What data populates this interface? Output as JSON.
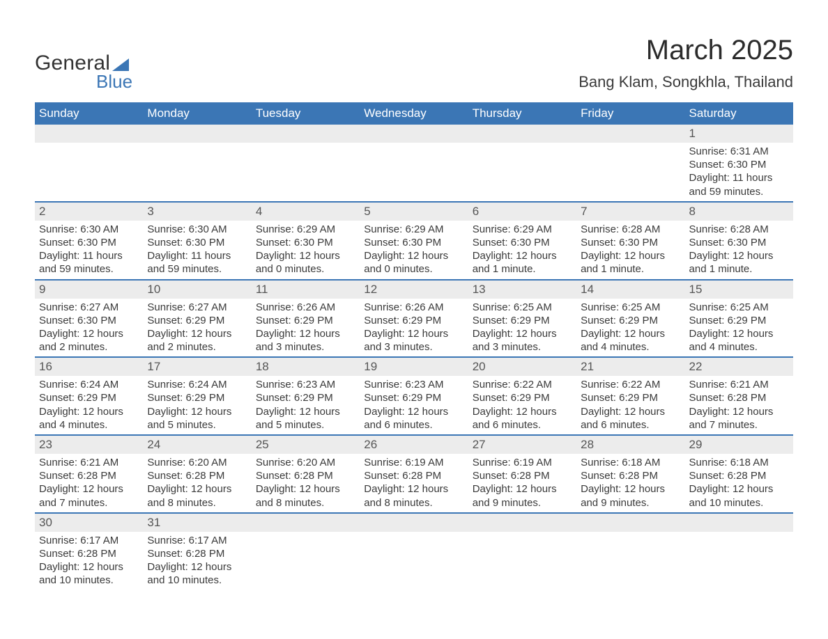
{
  "logo": {
    "word1": "General",
    "word2": "Blue",
    "shape_color": "#3b76b5"
  },
  "title": "March 2025",
  "subtitle": "Bang Klam, Songkhla, Thailand",
  "colors": {
    "header_bg": "#3b76b5",
    "header_text": "#ffffff",
    "daynum_bg": "#ececec",
    "row_divider": "#3b76b5",
    "body_text": "#3a3a3a",
    "page_bg": "#ffffff"
  },
  "typography": {
    "title_fontsize": 40,
    "subtitle_fontsize": 22,
    "header_fontsize": 17,
    "daynum_fontsize": 17,
    "detail_fontsize": 15,
    "font_family": "Arial"
  },
  "layout": {
    "columns": 7,
    "weeks": 6,
    "col_width_pct": 14.2857
  },
  "weekdays": [
    "Sunday",
    "Monday",
    "Tuesday",
    "Wednesday",
    "Thursday",
    "Friday",
    "Saturday"
  ],
  "weeks": [
    [
      null,
      null,
      null,
      null,
      null,
      null,
      {
        "day": "1",
        "sunrise": "Sunrise: 6:31 AM",
        "sunset": "Sunset: 6:30 PM",
        "daylight": "Daylight: 11 hours and 59 minutes."
      }
    ],
    [
      {
        "day": "2",
        "sunrise": "Sunrise: 6:30 AM",
        "sunset": "Sunset: 6:30 PM",
        "daylight": "Daylight: 11 hours and 59 minutes."
      },
      {
        "day": "3",
        "sunrise": "Sunrise: 6:30 AM",
        "sunset": "Sunset: 6:30 PM",
        "daylight": "Daylight: 11 hours and 59 minutes."
      },
      {
        "day": "4",
        "sunrise": "Sunrise: 6:29 AM",
        "sunset": "Sunset: 6:30 PM",
        "daylight": "Daylight: 12 hours and 0 minutes."
      },
      {
        "day": "5",
        "sunrise": "Sunrise: 6:29 AM",
        "sunset": "Sunset: 6:30 PM",
        "daylight": "Daylight: 12 hours and 0 minutes."
      },
      {
        "day": "6",
        "sunrise": "Sunrise: 6:29 AM",
        "sunset": "Sunset: 6:30 PM",
        "daylight": "Daylight: 12 hours and 1 minute."
      },
      {
        "day": "7",
        "sunrise": "Sunrise: 6:28 AM",
        "sunset": "Sunset: 6:30 PM",
        "daylight": "Daylight: 12 hours and 1 minute."
      },
      {
        "day": "8",
        "sunrise": "Sunrise: 6:28 AM",
        "sunset": "Sunset: 6:30 PM",
        "daylight": "Daylight: 12 hours and 1 minute."
      }
    ],
    [
      {
        "day": "9",
        "sunrise": "Sunrise: 6:27 AM",
        "sunset": "Sunset: 6:30 PM",
        "daylight": "Daylight: 12 hours and 2 minutes."
      },
      {
        "day": "10",
        "sunrise": "Sunrise: 6:27 AM",
        "sunset": "Sunset: 6:29 PM",
        "daylight": "Daylight: 12 hours and 2 minutes."
      },
      {
        "day": "11",
        "sunrise": "Sunrise: 6:26 AM",
        "sunset": "Sunset: 6:29 PM",
        "daylight": "Daylight: 12 hours and 3 minutes."
      },
      {
        "day": "12",
        "sunrise": "Sunrise: 6:26 AM",
        "sunset": "Sunset: 6:29 PM",
        "daylight": "Daylight: 12 hours and 3 minutes."
      },
      {
        "day": "13",
        "sunrise": "Sunrise: 6:25 AM",
        "sunset": "Sunset: 6:29 PM",
        "daylight": "Daylight: 12 hours and 3 minutes."
      },
      {
        "day": "14",
        "sunrise": "Sunrise: 6:25 AM",
        "sunset": "Sunset: 6:29 PM",
        "daylight": "Daylight: 12 hours and 4 minutes."
      },
      {
        "day": "15",
        "sunrise": "Sunrise: 6:25 AM",
        "sunset": "Sunset: 6:29 PM",
        "daylight": "Daylight: 12 hours and 4 minutes."
      }
    ],
    [
      {
        "day": "16",
        "sunrise": "Sunrise: 6:24 AM",
        "sunset": "Sunset: 6:29 PM",
        "daylight": "Daylight: 12 hours and 4 minutes."
      },
      {
        "day": "17",
        "sunrise": "Sunrise: 6:24 AM",
        "sunset": "Sunset: 6:29 PM",
        "daylight": "Daylight: 12 hours and 5 minutes."
      },
      {
        "day": "18",
        "sunrise": "Sunrise: 6:23 AM",
        "sunset": "Sunset: 6:29 PM",
        "daylight": "Daylight: 12 hours and 5 minutes."
      },
      {
        "day": "19",
        "sunrise": "Sunrise: 6:23 AM",
        "sunset": "Sunset: 6:29 PM",
        "daylight": "Daylight: 12 hours and 6 minutes."
      },
      {
        "day": "20",
        "sunrise": "Sunrise: 6:22 AM",
        "sunset": "Sunset: 6:29 PM",
        "daylight": "Daylight: 12 hours and 6 minutes."
      },
      {
        "day": "21",
        "sunrise": "Sunrise: 6:22 AM",
        "sunset": "Sunset: 6:29 PM",
        "daylight": "Daylight: 12 hours and 6 minutes."
      },
      {
        "day": "22",
        "sunrise": "Sunrise: 6:21 AM",
        "sunset": "Sunset: 6:28 PM",
        "daylight": "Daylight: 12 hours and 7 minutes."
      }
    ],
    [
      {
        "day": "23",
        "sunrise": "Sunrise: 6:21 AM",
        "sunset": "Sunset: 6:28 PM",
        "daylight": "Daylight: 12 hours and 7 minutes."
      },
      {
        "day": "24",
        "sunrise": "Sunrise: 6:20 AM",
        "sunset": "Sunset: 6:28 PM",
        "daylight": "Daylight: 12 hours and 8 minutes."
      },
      {
        "day": "25",
        "sunrise": "Sunrise: 6:20 AM",
        "sunset": "Sunset: 6:28 PM",
        "daylight": "Daylight: 12 hours and 8 minutes."
      },
      {
        "day": "26",
        "sunrise": "Sunrise: 6:19 AM",
        "sunset": "Sunset: 6:28 PM",
        "daylight": "Daylight: 12 hours and 8 minutes."
      },
      {
        "day": "27",
        "sunrise": "Sunrise: 6:19 AM",
        "sunset": "Sunset: 6:28 PM",
        "daylight": "Daylight: 12 hours and 9 minutes."
      },
      {
        "day": "28",
        "sunrise": "Sunrise: 6:18 AM",
        "sunset": "Sunset: 6:28 PM",
        "daylight": "Daylight: 12 hours and 9 minutes."
      },
      {
        "day": "29",
        "sunrise": "Sunrise: 6:18 AM",
        "sunset": "Sunset: 6:28 PM",
        "daylight": "Daylight: 12 hours and 10 minutes."
      }
    ],
    [
      {
        "day": "30",
        "sunrise": "Sunrise: 6:17 AM",
        "sunset": "Sunset: 6:28 PM",
        "daylight": "Daylight: 12 hours and 10 minutes."
      },
      {
        "day": "31",
        "sunrise": "Sunrise: 6:17 AM",
        "sunset": "Sunset: 6:28 PM",
        "daylight": "Daylight: 12 hours and 10 minutes."
      },
      null,
      null,
      null,
      null,
      null
    ]
  ]
}
